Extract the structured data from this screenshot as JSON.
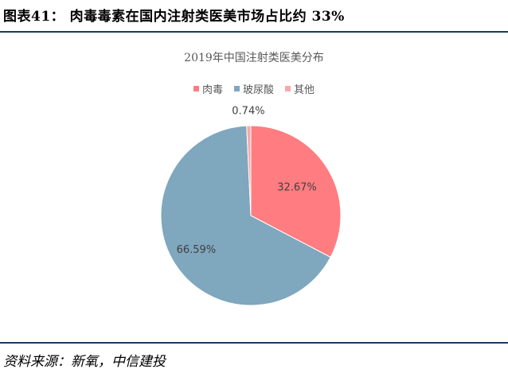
{
  "figure_title": "图表41： 肉毒毒素在国内注射类医美市场占比约 33%",
  "source_text": "资料来源：新氧，中信建投",
  "chart_data": {
    "type": "pie",
    "title": "2019年中国注射类医美分布",
    "legend_position": "top",
    "categories": [
      "肉毒",
      "玻尿酸",
      "其他"
    ],
    "values": [
      32.67,
      66.59,
      0.74
    ],
    "labels": [
      "32.67%",
      "66.59%",
      "0.74%"
    ],
    "colors": [
      "#ff7c80",
      "#7fa7be",
      "#f7a9a8"
    ]
  }
}
